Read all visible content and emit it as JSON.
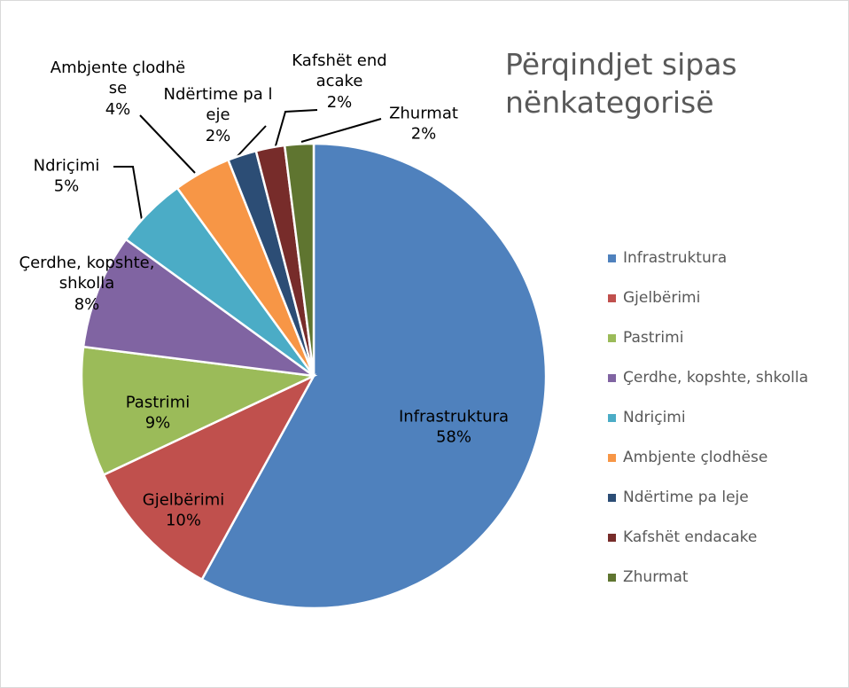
{
  "chart_data": {
    "type": "pie",
    "title": "Përqindjet sipas nënkategorisë",
    "categories": [
      "Infrastruktura",
      "Gjelbërimi",
      "Pastrimi",
      "Çerdhe, kopshte, shkolla",
      "Ndriçimi",
      "Ambjente çlodhëse",
      "Ndërtime pa leje",
      "Kafshët endacake",
      "Zhurmat"
    ],
    "values": [
      58,
      10,
      9,
      8,
      5,
      4,
      2,
      2,
      2
    ],
    "value_labels": [
      "58%",
      "10%",
      "9%",
      "8%",
      "5%",
      "4%",
      "2%",
      "2%",
      "2%"
    ],
    "colors": [
      "#4f81bd",
      "#c0504d",
      "#9bbb59",
      "#8064a2",
      "#4bacc6",
      "#f79646",
      "#2c4d75",
      "#772c2a",
      "#5f7530"
    ],
    "legend": "right"
  }
}
